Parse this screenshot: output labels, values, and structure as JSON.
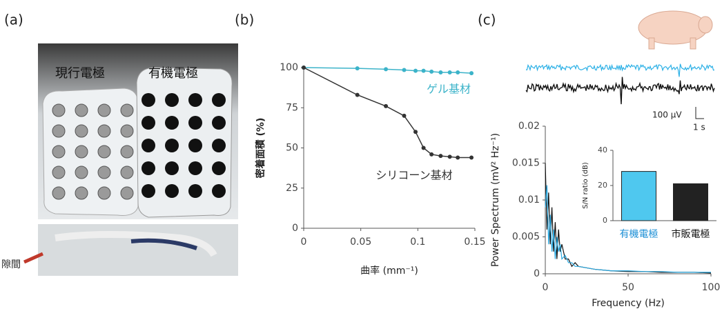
{
  "panel_labels": [
    "(a)",
    "(b)",
    "(c)"
  ],
  "photo_labels": {
    "current": "現行電極",
    "organic": "有機電極",
    "gap": "隙間"
  },
  "scale_bar": {
    "voltage": "100 µV",
    "time": "1 s"
  },
  "chart_data": [
    {
      "type": "line",
      "xlabel": "曲率 (mm⁻¹)",
      "ylabel": "密着面積 (%)",
      "xlim": [
        0,
        0.15
      ],
      "xticks": [
        0,
        0.05,
        0.1,
        0.15
      ],
      "ylim": [
        0,
        100
      ],
      "yticks": [
        0,
        25,
        50,
        75,
        100
      ],
      "annotations": [
        "ゲル基材",
        "シリコーン基材"
      ],
      "x": [
        0,
        0.047,
        0.072,
        0.088,
        0.098,
        0.105,
        0.112,
        0.12,
        0.128,
        0.135,
        0.147
      ],
      "series": [
        {
          "name": "ゲル基材",
          "color": "#3bb3c9",
          "values": [
            100,
            99.5,
            99,
            98.5,
            98,
            98,
            97.5,
            97,
            97,
            97,
            96.5
          ]
        },
        {
          "name": "シリコーン基材",
          "color": "#333333",
          "values": [
            100,
            83,
            76,
            70,
            60,
            50,
            46,
            45,
            44.5,
            44,
            44
          ]
        }
      ]
    },
    {
      "type": "line",
      "xlabel": "Frequency (Hz)",
      "ylabel": "Power Spectrum (mV² Hz⁻¹)",
      "xlim": [
        0,
        100
      ],
      "xticks": [
        0,
        50,
        100
      ],
      "ylim": [
        0,
        0.02
      ],
      "yticks": [
        0,
        0.005,
        0.01,
        0.015,
        0.02
      ],
      "x": [
        0,
        1,
        2,
        3,
        4,
        5,
        6,
        7,
        8,
        9,
        10,
        12,
        14,
        16,
        18,
        20,
        25,
        30,
        35,
        40,
        50,
        60,
        70,
        80,
        90,
        100
      ],
      "series": [
        {
          "name": "市販電極",
          "color": "#111111",
          "values": [
            0.015,
            0.006,
            0.011,
            0.004,
            0.009,
            0.003,
            0.007,
            0.002,
            0.006,
            0.003,
            0.004,
            0.002,
            0.002,
            0.001,
            0.0015,
            0.001,
            0.0008,
            0.0006,
            0.0005,
            0.0004,
            0.0003,
            0.0003,
            0.0002,
            0.0002,
            0.0002,
            0.0001
          ]
        },
        {
          "name": "有機電極",
          "color": "#29a8e0",
          "values": [
            0.009,
            0.012,
            0.004,
            0.008,
            0.003,
            0.006,
            0.002,
            0.005,
            0.003,
            0.004,
            0.002,
            0.0025,
            0.0015,
            0.0015,
            0.001,
            0.001,
            0.0008,
            0.0006,
            0.0005,
            0.0004,
            0.0004,
            0.0003,
            0.0003,
            0.0002,
            0.0002,
            0.0002
          ]
        }
      ]
    },
    {
      "type": "bar",
      "ylabel": "S/N ratio (dB)",
      "ylim": [
        0,
        40
      ],
      "yticks": [
        0,
        20,
        40
      ],
      "categories": [
        "有機電極",
        "市販電極"
      ],
      "values": [
        28,
        21
      ],
      "colors": [
        "#4fc8ef",
        "#222222"
      ]
    }
  ]
}
